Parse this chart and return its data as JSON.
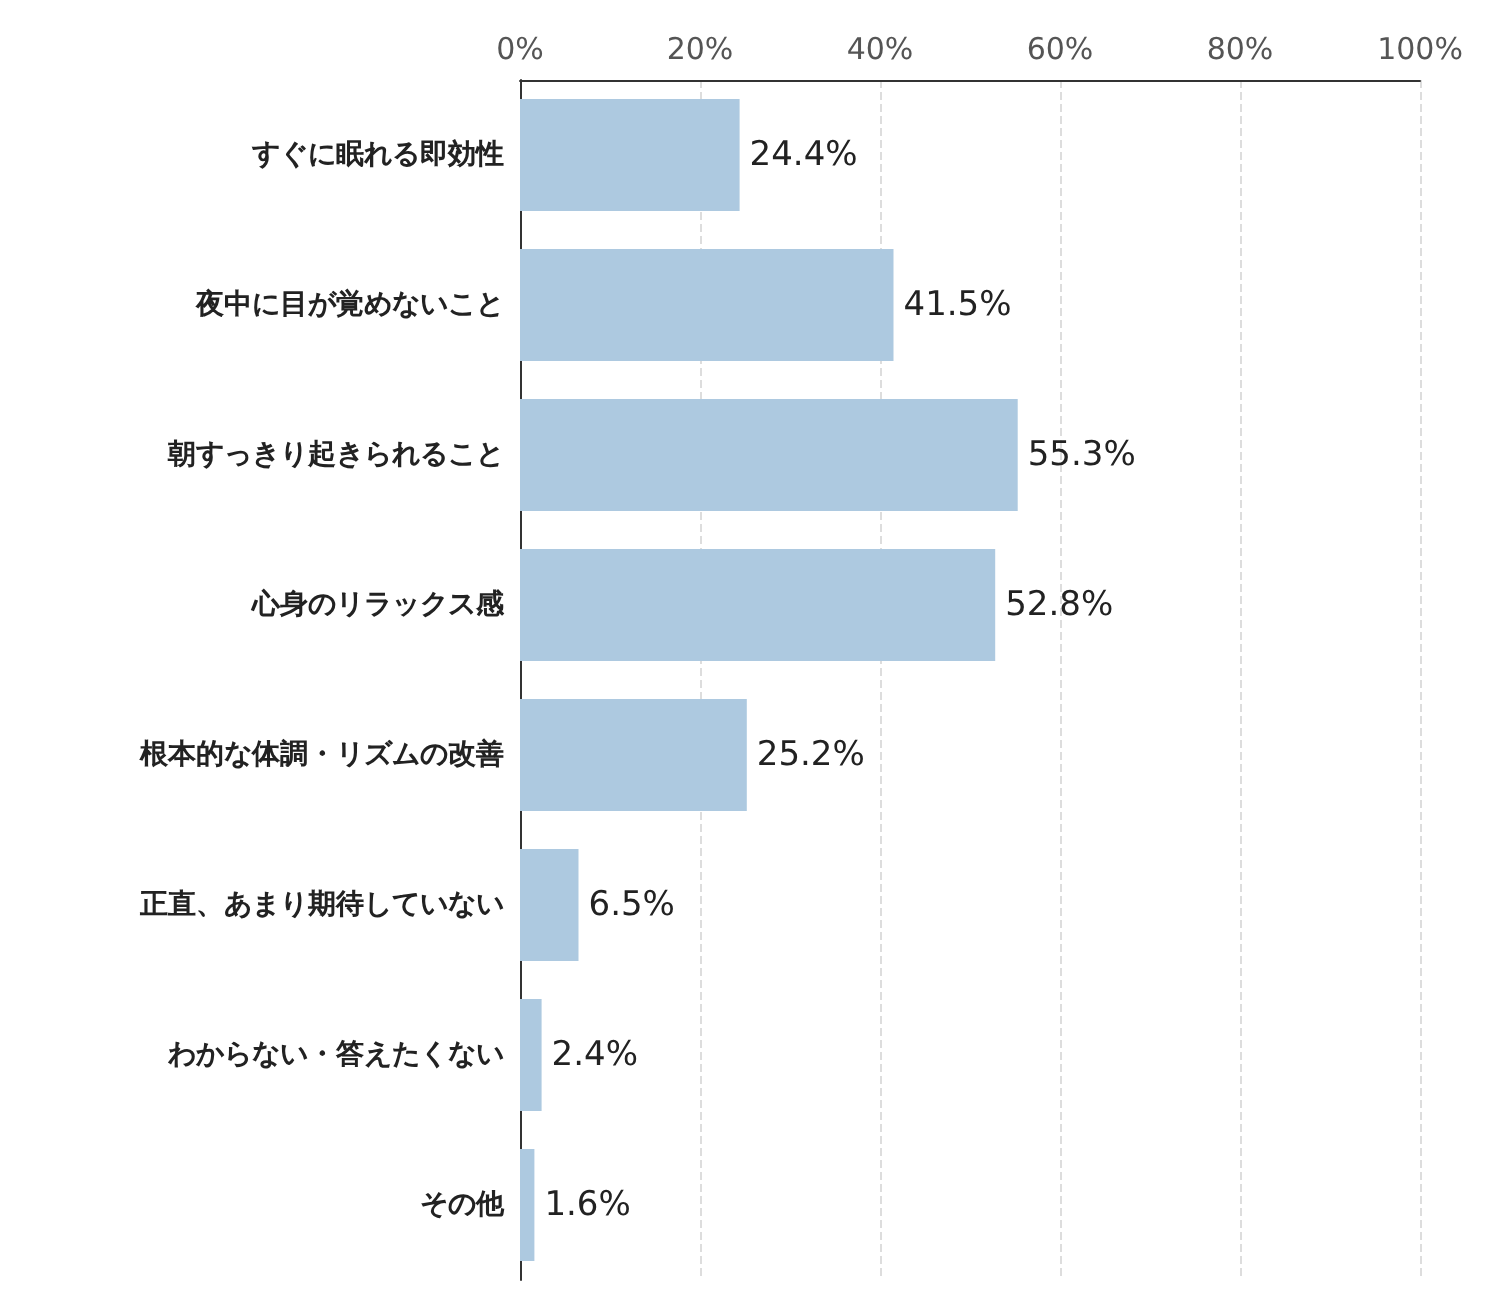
{
  "chart_data": {
    "type": "bar",
    "orientation": "horizontal",
    "categories": [
      "すぐに眠れる即効性",
      "夜中に目が覚めないこと",
      "朝すっきり起きられること",
      "心身のリラックス感",
      "根本的な体調・リズムの改善",
      "正直、あまり期待していない",
      "わからない・答えたくない",
      "その他"
    ],
    "values": [
      24.4,
      41.5,
      55.3,
      52.8,
      25.2,
      6.5,
      2.4,
      1.6
    ],
    "value_labels": [
      "24.4%",
      "41.5%",
      "55.3%",
      "52.8%",
      "25.2%",
      "6.5%",
      "2.4%",
      "1.6%"
    ],
    "color": "#adc9e0",
    "xlim": [
      0,
      100
    ],
    "xticks": [
      {
        "value": 0,
        "label": "0%"
      },
      {
        "value": 20,
        "label": "20%"
      },
      {
        "value": 40,
        "label": "40%"
      },
      {
        "value": 60,
        "label": "60%"
      },
      {
        "value": 80,
        "label": "80%"
      },
      {
        "value": 100,
        "label": "100%"
      }
    ],
    "grid": "x"
  }
}
